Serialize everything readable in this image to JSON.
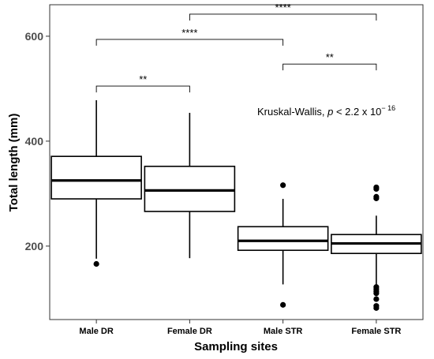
{
  "chart_data": {
    "type": "boxplot",
    "xlabel": "Sampling sites",
    "ylabel": "Total length (mm)",
    "ylim": [
      60,
      660
    ],
    "yticks": [
      200,
      400,
      600
    ],
    "grid": false,
    "categories": [
      "Male DR",
      "Female DR",
      "Male STR",
      "Female STR"
    ],
    "boxes": [
      {
        "name": "Male DR",
        "min": 176,
        "q1": 290,
        "median": 325,
        "q3": 371,
        "max": 478,
        "outliers": [
          166
        ]
      },
      {
        "name": "Female DR",
        "min": 177,
        "q1": 266,
        "median": 306,
        "q3": 352,
        "max": 454,
        "outliers": []
      },
      {
        "name": "Male STR",
        "min": 127,
        "q1": 192,
        "median": 210,
        "q3": 237,
        "max": 290,
        "outliers": [
          316,
          88
        ]
      },
      {
        "name": "Female STR",
        "min": 125,
        "q1": 186,
        "median": 205,
        "q3": 222,
        "max": 258,
        "outliers": [
          312,
          309,
          294,
          291,
          122,
          118,
          114,
          110,
          99,
          86,
          82
        ]
      }
    ],
    "comparisons": [
      {
        "groups": [
          "Male DR",
          "Female DR"
        ],
        "label": "**",
        "y": 505
      },
      {
        "groups": [
          "Male DR",
          "Male STR"
        ],
        "label": "****",
        "y": 594
      },
      {
        "groups": [
          "Female DR",
          "Female STR"
        ],
        "label": "****",
        "y": 642
      },
      {
        "groups": [
          "Male STR",
          "Female STR"
        ],
        "label": "**",
        "y": 547
      }
    ],
    "annotation": {
      "prefix": "Kruskal-Wallis, ",
      "p": "p",
      "rest": " < 2.2 x 10",
      "exponent": "− 16"
    }
  }
}
